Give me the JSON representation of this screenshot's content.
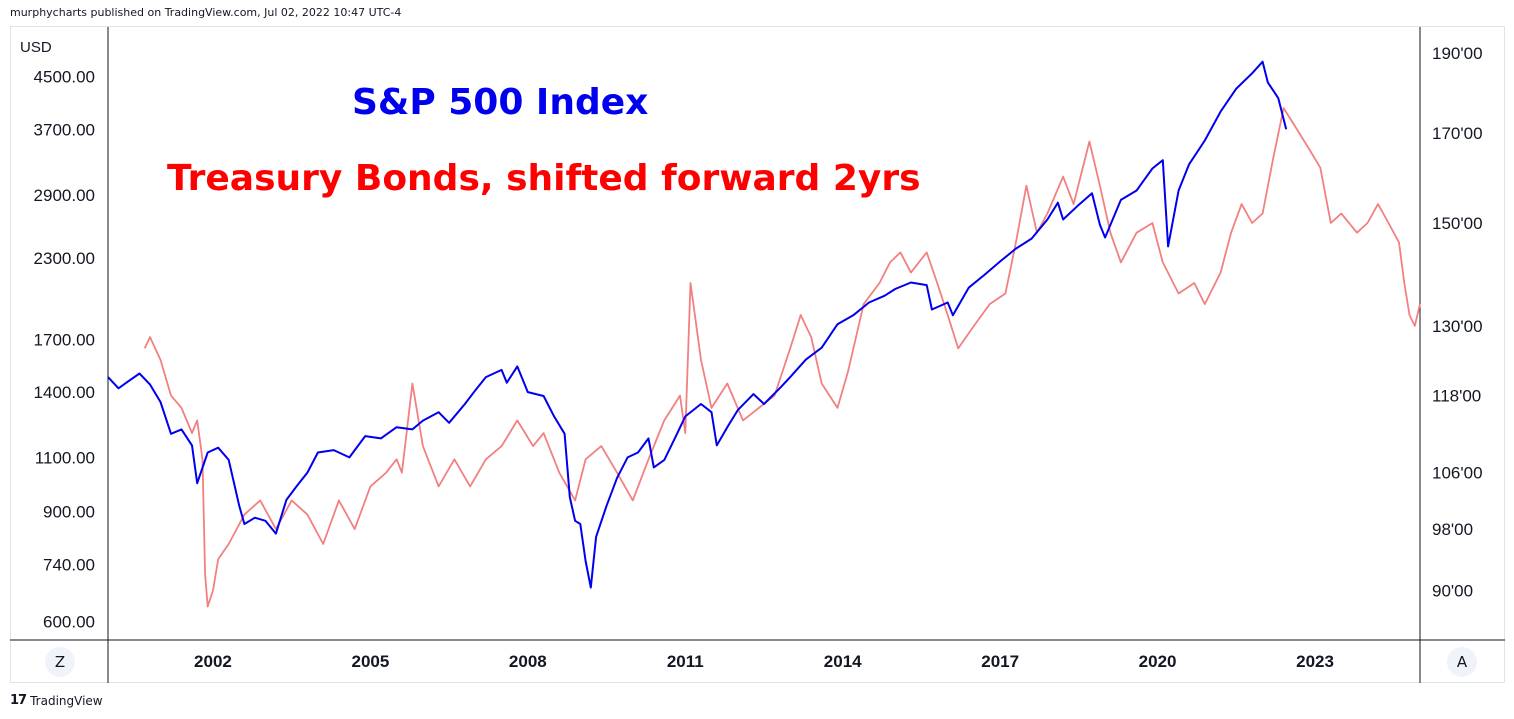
{
  "header": {
    "published_by": "murphycharts published on TradingView.com, Jul 02, 2022 10:47 UTC-4"
  },
  "footer": {
    "brand_mark": "17",
    "brand": "TradingView"
  },
  "corner_buttons": {
    "left": "Z",
    "right": "A"
  },
  "colors": {
    "spx": "#0000ee",
    "bonds": "#f28080",
    "axis": "#131722",
    "frame": "#e0e3eb"
  },
  "chart_data": {
    "type": "line",
    "annotations": [
      {
        "text": "S&P 500 Index",
        "color": "#0000ee"
      },
      {
        "text": "Treasury Bonds, shifted forward 2yrs",
        "color": "#ff0000"
      }
    ],
    "left_axis": {
      "unit": "USD",
      "scale": "log",
      "range": [
        560,
        5400
      ],
      "ticks": [
        {
          "value": 4500,
          "label": "4500.00"
        },
        {
          "value": 3700,
          "label": "3700.00"
        },
        {
          "value": 2900,
          "label": "2900.00"
        },
        {
          "value": 2300,
          "label": "2300.00"
        },
        {
          "value": 1700,
          "label": "1700.00"
        },
        {
          "value": 1400,
          "label": "1400.00"
        },
        {
          "value": 1100,
          "label": "1100.00"
        },
        {
          "value": 900,
          "label": "900.00"
        },
        {
          "value": 740,
          "label": "740.00"
        },
        {
          "value": 600,
          "label": "600.00"
        }
      ]
    },
    "right_axis": {
      "scale": "log",
      "range": [
        84,
        197
      ],
      "ticks": [
        {
          "value": 190,
          "label": "190'00"
        },
        {
          "value": 170,
          "label": "170'00"
        },
        {
          "value": 150,
          "label": "150'00"
        },
        {
          "value": 130,
          "label": "130'00"
        },
        {
          "value": 118,
          "label": "118'00"
        },
        {
          "value": 106,
          "label": "106'00"
        },
        {
          "value": 98,
          "label": "98'00"
        },
        {
          "value": 90,
          "label": "90'00"
        }
      ]
    },
    "x_axis": {
      "range": [
        2000.0,
        2025.0
      ],
      "ticks": [
        {
          "value": 2002,
          "label": "2002"
        },
        {
          "value": 2005,
          "label": "2005"
        },
        {
          "value": 2008,
          "label": "2008"
        },
        {
          "value": 2011,
          "label": "2011"
        },
        {
          "value": 2014,
          "label": "2014"
        },
        {
          "value": 2017,
          "label": "2017"
        },
        {
          "value": 2020,
          "label": "2020"
        },
        {
          "value": 2023,
          "label": "2023"
        }
      ]
    },
    "series": [
      {
        "axis": "left",
        "color": "#0000ee",
        "points": [
          [
            2000.0,
            1480
          ],
          [
            2000.2,
            1420
          ],
          [
            2000.4,
            1460
          ],
          [
            2000.6,
            1500
          ],
          [
            2000.8,
            1440
          ],
          [
            2001.0,
            1350
          ],
          [
            2001.2,
            1200
          ],
          [
            2001.4,
            1220
          ],
          [
            2001.6,
            1150
          ],
          [
            2001.7,
            1000
          ],
          [
            2001.9,
            1120
          ],
          [
            2002.1,
            1140
          ],
          [
            2002.3,
            1090
          ],
          [
            2002.5,
            920
          ],
          [
            2002.6,
            860
          ],
          [
            2002.8,
            880
          ],
          [
            2003.0,
            870
          ],
          [
            2003.2,
            830
          ],
          [
            2003.4,
            940
          ],
          [
            2003.6,
            990
          ],
          [
            2003.8,
            1040
          ],
          [
            2004.0,
            1120
          ],
          [
            2004.3,
            1130
          ],
          [
            2004.6,
            1100
          ],
          [
            2004.9,
            1190
          ],
          [
            2005.2,
            1180
          ],
          [
            2005.5,
            1230
          ],
          [
            2005.8,
            1220
          ],
          [
            2006.0,
            1260
          ],
          [
            2006.3,
            1300
          ],
          [
            2006.5,
            1250
          ],
          [
            2006.8,
            1340
          ],
          [
            2007.0,
            1410
          ],
          [
            2007.2,
            1480
          ],
          [
            2007.5,
            1520
          ],
          [
            2007.6,
            1450
          ],
          [
            2007.8,
            1540
          ],
          [
            2008.0,
            1400
          ],
          [
            2008.3,
            1380
          ],
          [
            2008.5,
            1280
          ],
          [
            2008.7,
            1200
          ],
          [
            2008.8,
            950
          ],
          [
            2008.9,
            870
          ],
          [
            2009.0,
            860
          ],
          [
            2009.1,
            750
          ],
          [
            2009.2,
            680
          ],
          [
            2009.3,
            820
          ],
          [
            2009.5,
            920
          ],
          [
            2009.7,
            1020
          ],
          [
            2009.9,
            1100
          ],
          [
            2010.1,
            1120
          ],
          [
            2010.3,
            1180
          ],
          [
            2010.4,
            1060
          ],
          [
            2010.6,
            1090
          ],
          [
            2010.8,
            1180
          ],
          [
            2011.0,
            1280
          ],
          [
            2011.3,
            1340
          ],
          [
            2011.5,
            1300
          ],
          [
            2011.6,
            1150
          ],
          [
            2011.8,
            1230
          ],
          [
            2012.0,
            1310
          ],
          [
            2012.3,
            1390
          ],
          [
            2012.5,
            1340
          ],
          [
            2012.8,
            1420
          ],
          [
            2013.0,
            1480
          ],
          [
            2013.3,
            1580
          ],
          [
            2013.6,
            1650
          ],
          [
            2013.9,
            1800
          ],
          [
            2014.2,
            1860
          ],
          [
            2014.5,
            1950
          ],
          [
            2014.8,
            2000
          ],
          [
            2015.0,
            2050
          ],
          [
            2015.3,
            2100
          ],
          [
            2015.6,
            2080
          ],
          [
            2015.7,
            1900
          ],
          [
            2016.0,
            1950
          ],
          [
            2016.1,
            1860
          ],
          [
            2016.4,
            2060
          ],
          [
            2016.7,
            2160
          ],
          [
            2017.0,
            2270
          ],
          [
            2017.3,
            2380
          ],
          [
            2017.6,
            2470
          ],
          [
            2017.9,
            2650
          ],
          [
            2018.1,
            2820
          ],
          [
            2018.2,
            2650
          ],
          [
            2018.5,
            2800
          ],
          [
            2018.75,
            2920
          ],
          [
            2018.9,
            2600
          ],
          [
            2019.0,
            2480
          ],
          [
            2019.3,
            2850
          ],
          [
            2019.6,
            2950
          ],
          [
            2019.9,
            3200
          ],
          [
            2020.1,
            3300
          ],
          [
            2020.2,
            2400
          ],
          [
            2020.4,
            2950
          ],
          [
            2020.6,
            3250
          ],
          [
            2020.9,
            3550
          ],
          [
            2021.2,
            3950
          ],
          [
            2021.5,
            4300
          ],
          [
            2021.8,
            4550
          ],
          [
            2022.0,
            4750
          ],
          [
            2022.1,
            4400
          ],
          [
            2022.3,
            4150
          ],
          [
            2022.45,
            3700
          ]
        ]
      },
      {
        "axis": "right",
        "color": "#f28080",
        "points": [
          [
            2000.7,
            126
          ],
          [
            2000.8,
            128
          ],
          [
            2001.0,
            124
          ],
          [
            2001.2,
            118
          ],
          [
            2001.4,
            116
          ],
          [
            2001.6,
            112
          ],
          [
            2001.7,
            114
          ],
          [
            2001.8,
            108
          ],
          [
            2001.85,
            92
          ],
          [
            2001.9,
            88
          ],
          [
            2002.0,
            90
          ],
          [
            2002.1,
            94
          ],
          [
            2002.3,
            96
          ],
          [
            2002.6,
            100
          ],
          [
            2002.9,
            102
          ],
          [
            2003.2,
            98
          ],
          [
            2003.5,
            102
          ],
          [
            2003.8,
            100
          ],
          [
            2004.1,
            96
          ],
          [
            2004.4,
            102
          ],
          [
            2004.7,
            98
          ],
          [
            2005.0,
            104
          ],
          [
            2005.3,
            106
          ],
          [
            2005.5,
            108
          ],
          [
            2005.6,
            106
          ],
          [
            2005.8,
            120
          ],
          [
            2006.0,
            110
          ],
          [
            2006.3,
            104
          ],
          [
            2006.6,
            108
          ],
          [
            2006.9,
            104
          ],
          [
            2007.2,
            108
          ],
          [
            2007.5,
            110
          ],
          [
            2007.8,
            114
          ],
          [
            2008.1,
            110
          ],
          [
            2008.3,
            112
          ],
          [
            2008.6,
            106
          ],
          [
            2008.9,
            102
          ],
          [
            2009.1,
            108
          ],
          [
            2009.4,
            110
          ],
          [
            2009.7,
            106
          ],
          [
            2010.0,
            102
          ],
          [
            2010.3,
            108
          ],
          [
            2010.6,
            114
          ],
          [
            2010.9,
            118
          ],
          [
            2011.0,
            112
          ],
          [
            2011.1,
            138
          ],
          [
            2011.3,
            124
          ],
          [
            2011.5,
            116
          ],
          [
            2011.8,
            120
          ],
          [
            2012.1,
            114
          ],
          [
            2012.4,
            116
          ],
          [
            2012.7,
            118
          ],
          [
            2013.0,
            126
          ],
          [
            2013.2,
            132
          ],
          [
            2013.4,
            128
          ],
          [
            2013.6,
            120
          ],
          [
            2013.9,
            116
          ],
          [
            2014.1,
            122
          ],
          [
            2014.4,
            134
          ],
          [
            2014.7,
            138
          ],
          [
            2014.9,
            142
          ],
          [
            2015.1,
            144
          ],
          [
            2015.3,
            140
          ],
          [
            2015.6,
            144
          ],
          [
            2015.8,
            138
          ],
          [
            2016.0,
            132
          ],
          [
            2016.2,
            126
          ],
          [
            2016.5,
            130
          ],
          [
            2016.8,
            134
          ],
          [
            2017.1,
            136
          ],
          [
            2017.3,
            146
          ],
          [
            2017.5,
            158
          ],
          [
            2017.7,
            148
          ],
          [
            2017.9,
            152
          ],
          [
            2018.2,
            160
          ],
          [
            2018.4,
            154
          ],
          [
            2018.7,
            168
          ],
          [
            2018.9,
            158
          ],
          [
            2019.1,
            148
          ],
          [
            2019.3,
            142
          ],
          [
            2019.6,
            148
          ],
          [
            2019.9,
            150
          ],
          [
            2020.1,
            142
          ],
          [
            2020.4,
            136
          ],
          [
            2020.7,
            138
          ],
          [
            2020.9,
            134
          ],
          [
            2021.2,
            140
          ],
          [
            2021.4,
            148
          ],
          [
            2021.6,
            154
          ],
          [
            2021.8,
            150
          ],
          [
            2022.0,
            152
          ],
          [
            2022.2,
            164
          ],
          [
            2022.4,
            176
          ],
          [
            2022.6,
            172
          ],
          [
            2022.9,
            166
          ],
          [
            2023.1,
            162
          ],
          [
            2023.3,
            150
          ],
          [
            2023.5,
            152
          ],
          [
            2023.8,
            148
          ],
          [
            2024.0,
            150
          ],
          [
            2024.2,
            154
          ],
          [
            2024.4,
            150
          ],
          [
            2024.6,
            146
          ],
          [
            2024.7,
            138
          ],
          [
            2024.8,
            132
          ],
          [
            2024.9,
            130
          ],
          [
            2025.0,
            134
          ]
        ]
      }
    ]
  }
}
